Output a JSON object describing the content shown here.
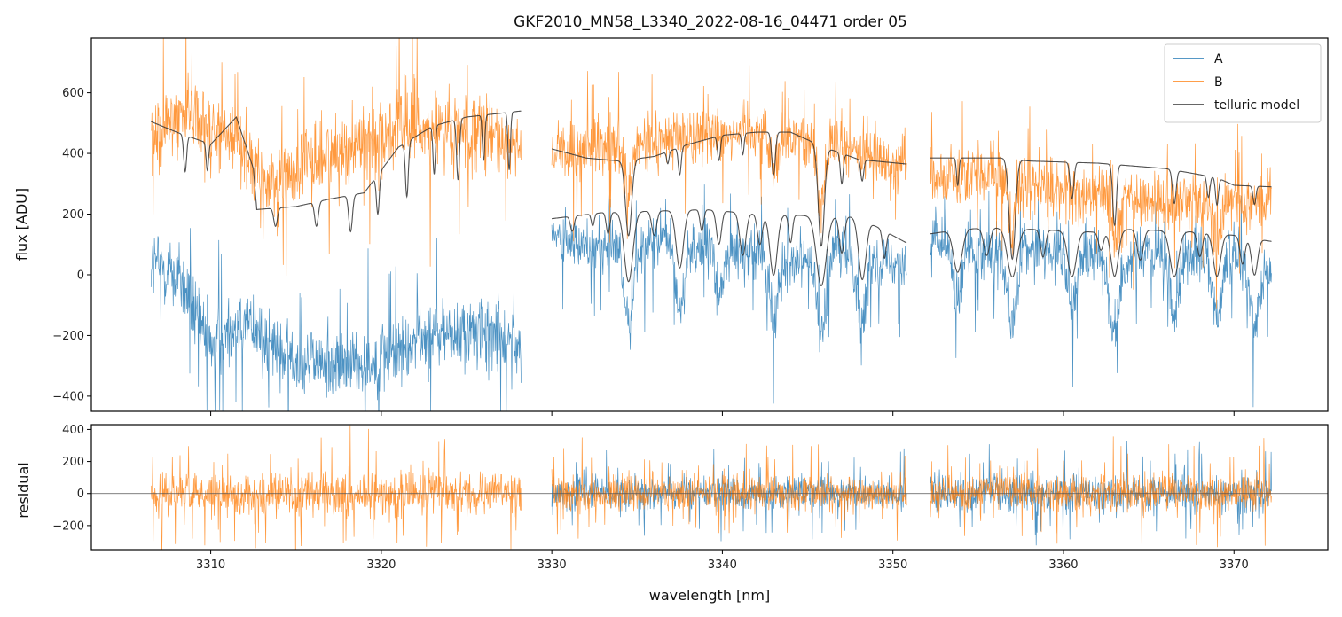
{
  "chart_data": {
    "type": "line",
    "title": "GKF2010_MN58_L3340_2022-08-16_04471  order 05",
    "xlabel": "wavelength [nm]",
    "xlim": [
      3303,
      3375.5
    ],
    "xticks": [
      3310,
      3320,
      3330,
      3340,
      3350,
      3360,
      3370
    ],
    "legend_position": "top-right",
    "colors": {
      "A": "#1f77b4",
      "B": "#ff7f0e",
      "telluric": "#333333"
    },
    "top_panel": {
      "ylabel": "flux [ADU]",
      "ylim": [
        -450,
        780
      ],
      "yticks": [
        -400,
        -200,
        0,
        200,
        400,
        600
      ],
      "ytick_labels": [
        "−400",
        "−200",
        "0",
        "200",
        "400",
        "600"
      ],
      "segments": [
        {
          "x": [
            3306.5,
            3328.2
          ],
          "A": {
            "level": [
              [
                3306.5,
                40
              ],
              [
                3308,
                0
              ],
              [
                3309,
                -120
              ],
              [
                3310,
                -230
              ],
              [
                3312,
                -150
              ],
              [
                3314,
                -260
              ],
              [
                3317,
                -300
              ],
              [
                3320,
                -280
              ],
              [
                3323,
                -200
              ],
              [
                3326,
                -190
              ],
              [
                3328.2,
                -230
              ]
            ],
            "noise": 110,
            "dips": []
          },
          "B": {
            "level": [
              [
                3306.5,
                420
              ],
              [
                3308,
                520
              ],
              [
                3309,
                560
              ],
              [
                3310,
                470
              ],
              [
                3312,
                430
              ],
              [
                3313,
                280
              ],
              [
                3315,
                350
              ],
              [
                3318,
                420
              ],
              [
                3321,
                480
              ],
              [
                3324,
                470
              ],
              [
                3328.2,
                440
              ]
            ],
            "noise": 120,
            "dips": []
          },
          "telluric_A": null,
          "telluric_B": {
            "level": [
              [
                3306.5,
                505
              ],
              [
                3308,
                470
              ],
              [
                3310,
                430
              ],
              [
                3311.5,
                520
              ],
              [
                3312.5,
                350
              ],
              [
                3312.7,
                215
              ],
              [
                3315,
                225
              ],
              [
                3317,
                250
              ],
              [
                3319,
                270
              ],
              [
                3321,
                420
              ],
              [
                3323,
                490
              ],
              [
                3325,
                520
              ],
              [
                3328.2,
                540
              ]
            ],
            "dips": [
              [
                3308.5,
                120,
                0.12
              ],
              [
                3309.8,
                90,
                0.1
              ],
              [
                3313.8,
                60,
                0.15
              ],
              [
                3316.2,
                80,
                0.15
              ],
              [
                3318.2,
                120,
                0.15
              ],
              [
                3319.8,
                130,
                0.12
              ],
              [
                3321.5,
                180,
                0.12
              ],
              [
                3323.1,
                160,
                0.1
              ],
              [
                3324.5,
                200,
                0.12
              ],
              [
                3326.0,
                150,
                0.1
              ],
              [
                3327.5,
                190,
                0.1
              ]
            ]
          }
        },
        {
          "x": [
            3330.0,
            3350.8
          ],
          "A": {
            "level": [
              [
                3330,
                110
              ],
              [
                3333,
                90
              ],
              [
                3336,
                100
              ],
              [
                3340,
                80
              ],
              [
                3344,
                60
              ],
              [
                3347,
                70
              ],
              [
                3350.8,
                40
              ]
            ],
            "noise": 80,
            "dips": [
              [
                3334.5,
                240,
                0.4
              ],
              [
                3337.5,
                200,
                0.35
              ],
              [
                3339.8,
                150,
                0.3
              ],
              [
                3343.0,
                220,
                0.35
              ],
              [
                3345.8,
                260,
                0.4
              ],
              [
                3348.2,
                230,
                0.35
              ]
            ]
          },
          "B": {
            "level": [
              [
                3330,
                400
              ],
              [
                3334,
                410
              ],
              [
                3338,
                460
              ],
              [
                3342,
                480
              ],
              [
                3346,
                430
              ],
              [
                3350.8,
                360
              ]
            ],
            "noise": 90,
            "dips": [
              [
                3334.5,
                150,
                0.3
              ],
              [
                3343.0,
                120,
                0.3
              ],
              [
                3345.8,
                200,
                0.3
              ]
            ]
          },
          "telluric_A": {
            "level": [
              [
                3330,
                185
              ],
              [
                3333,
                205
              ],
              [
                3336,
                210
              ],
              [
                3339,
                215
              ],
              [
                3342,
                200
              ],
              [
                3345,
                195
              ],
              [
                3348,
                190
              ],
              [
                3350.8,
                105
              ]
            ],
            "dips": [
              [
                3331.2,
                50,
                0.15
              ],
              [
                3332.4,
                40,
                0.12
              ],
              [
                3333.3,
                70,
                0.15
              ],
              [
                3334.5,
                230,
                0.35
              ],
              [
                3336.0,
                80,
                0.2
              ],
              [
                3337.5,
                190,
                0.3
              ],
              [
                3338.8,
                70,
                0.15
              ],
              [
                3339.8,
                110,
                0.2
              ],
              [
                3341.2,
                140,
                0.25
              ],
              [
                3342.2,
                100,
                0.2
              ],
              [
                3343.0,
                200,
                0.3
              ],
              [
                3344.0,
                90,
                0.15
              ],
              [
                3345.8,
                230,
                0.4
              ],
              [
                3347.0,
                120,
                0.2
              ],
              [
                3348.2,
                200,
                0.3
              ],
              [
                3349.5,
                90,
                0.15
              ]
            ]
          },
          "telluric_B": {
            "level": [
              [
                3330,
                415
              ],
              [
                3332,
                385
              ],
              [
                3334,
                375
              ],
              [
                3336,
                390
              ],
              [
                3338,
                430
              ],
              [
                3340,
                460
              ],
              [
                3342,
                470
              ],
              [
                3344,
                470
              ],
              [
                3346,
                420
              ],
              [
                3348,
                380
              ],
              [
                3350.8,
                365
              ]
            ],
            "dips": [
              [
                3334.5,
                250,
                0.25
              ],
              [
                3336.8,
                40,
                0.1
              ],
              [
                3337.5,
                90,
                0.12
              ],
              [
                3339.8,
                80,
                0.12
              ],
              [
                3341.2,
                70,
                0.1
              ],
              [
                3343.0,
                140,
                0.15
              ],
              [
                3345.8,
                330,
                0.25
              ],
              [
                3347.0,
                100,
                0.12
              ],
              [
                3348.2,
                70,
                0.12
              ]
            ]
          }
        },
        {
          "x": [
            3352.2,
            3372.2
          ],
          "A": {
            "level": [
              [
                3352.2,
                110
              ],
              [
                3355,
                80
              ],
              [
                3358,
                90
              ],
              [
                3361,
                70
              ],
              [
                3364,
                60
              ],
              [
                3368,
                70
              ],
              [
                3372.2,
                20
              ]
            ],
            "noise": 80,
            "dips": [
              [
                3353.8,
                180,
                0.35
              ],
              [
                3357.0,
                250,
                0.4
              ],
              [
                3360.5,
                200,
                0.35
              ],
              [
                3363.0,
                260,
                0.4
              ],
              [
                3366.5,
                200,
                0.35
              ],
              [
                3369.0,
                180,
                0.35
              ],
              [
                3371.2,
                200,
                0.35
              ]
            ]
          },
          "B": {
            "level": [
              [
                3352.2,
                320
              ],
              [
                3355,
                340
              ],
              [
                3358,
                300
              ],
              [
                3361,
                260
              ],
              [
                3364,
                250
              ],
              [
                3368,
                230
              ],
              [
                3372.2,
                240
              ]
            ],
            "noise": 90,
            "dips": [
              [
                3357.0,
                150,
                0.3
              ],
              [
                3363.0,
                140,
                0.3
              ],
              [
                3369.0,
                120,
                0.3
              ]
            ]
          },
          "telluric_A": {
            "level": [
              [
                3352.2,
                135
              ],
              [
                3354,
                150
              ],
              [
                3356,
                155
              ],
              [
                3358,
                150
              ],
              [
                3360,
                145
              ],
              [
                3362,
                140
              ],
              [
                3364,
                150
              ],
              [
                3366,
                145
              ],
              [
                3368,
                140
              ],
              [
                3370,
                130
              ],
              [
                3372.2,
                110
              ]
            ],
            "dips": [
              [
                3353.8,
                140,
                0.35
              ],
              [
                3355.5,
                90,
                0.25
              ],
              [
                3357.0,
                160,
                0.4
              ],
              [
                3358.8,
                90,
                0.2
              ],
              [
                3360.5,
                150,
                0.35
              ],
              [
                3362.2,
                60,
                0.2
              ],
              [
                3363.0,
                150,
                0.3
              ],
              [
                3364.5,
                100,
                0.25
              ],
              [
                3366.5,
                150,
                0.35
              ],
              [
                3368.0,
                80,
                0.2
              ],
              [
                3369.0,
                140,
                0.3
              ],
              [
                3370.5,
                90,
                0.2
              ],
              [
                3371.2,
                120,
                0.25
              ]
            ]
          },
          "telluric_B": {
            "level": [
              [
                3352.2,
                385
              ],
              [
                3355,
                385
              ],
              [
                3356.5,
                385
              ],
              [
                3358,
                375
              ],
              [
                3362,
                368
              ],
              [
                3366,
                350
              ],
              [
                3369,
                320
              ],
              [
                3370,
                295
              ],
              [
                3372.2,
                290
              ]
            ],
            "dips": [
              [
                3353.8,
                90,
                0.1
              ],
              [
                3357.0,
                330,
                0.25
              ],
              [
                3360.5,
                120,
                0.15
              ],
              [
                3363.0,
                200,
                0.15
              ],
              [
                3366.5,
                110,
                0.15
              ],
              [
                3368.5,
                70,
                0.12
              ],
              [
                3369.0,
                90,
                0.12
              ],
              [
                3371.2,
                60,
                0.12
              ]
            ]
          }
        }
      ]
    },
    "bottom_panel": {
      "ylabel": "residual",
      "ylim": [
        -350,
        430
      ],
      "yticks": [
        -200,
        0,
        200,
        400
      ],
      "ytick_labels": [
        "−200",
        "0",
        "200",
        "400"
      ],
      "zero_line": 0,
      "segments": [
        {
          "x": [
            3306.5,
            3328.2
          ],
          "A_noise": null,
          "B_noise": 130
        },
        {
          "x": [
            3330.0,
            3350.8
          ],
          "A_noise": 90,
          "B_noise": 100
        },
        {
          "x": [
            3352.2,
            3372.2
          ],
          "A_noise": 100,
          "B_noise": 110
        }
      ]
    },
    "legend": [
      {
        "key": "A",
        "label": "A"
      },
      {
        "key": "B",
        "label": "B"
      },
      {
        "key": "telluric",
        "label": "telluric model"
      }
    ]
  }
}
